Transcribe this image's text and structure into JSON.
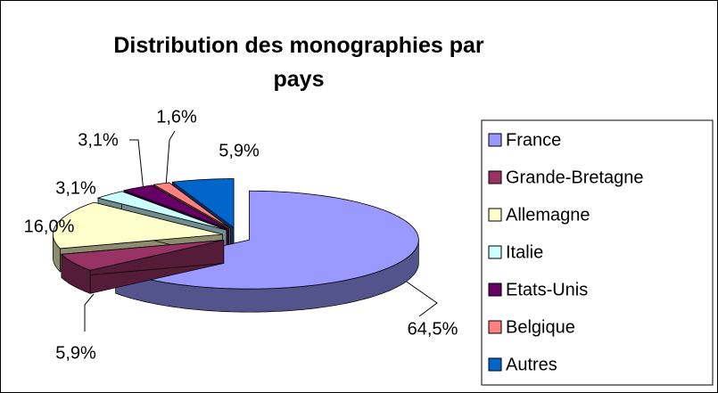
{
  "chart_data": {
    "type": "pie3d",
    "title": "Distribution des monographies par pays",
    "categories": [
      "France",
      "Grande-Bretagne",
      "Allemagne",
      "Italie",
      "Etats-Unis",
      "Belgique",
      "Autres"
    ],
    "values": [
      64.5,
      5.9,
      16.0,
      3.1,
      3.1,
      1.6,
      5.9
    ],
    "value_labels": [
      "64,5%",
      "5,9%",
      "16,0%",
      "3,1%",
      "3,1%",
      "1,6%",
      "5,9%"
    ],
    "colors": [
      "#9999ff",
      "#993366",
      "#ffffcc",
      "#ccffff",
      "#660066",
      "#ff8080",
      "#0066cc"
    ],
    "legend": "right"
  }
}
